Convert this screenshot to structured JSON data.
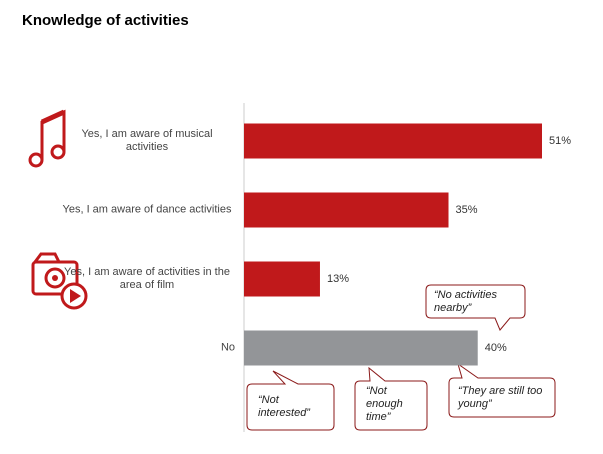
{
  "chart_data": {
    "type": "bar",
    "orientation": "horizontal",
    "title": "Knowledge of activities",
    "categories": [
      "Yes, I am aware of musical activities",
      "Yes, I am aware of dance activities",
      "Yes, I am aware of activities in the area of film",
      "No"
    ],
    "values": [
      51,
      35,
      13,
      40
    ],
    "value_labels": [
      "51%",
      "35%",
      "13%",
      "40%"
    ],
    "colors": [
      "#c0191b",
      "#c0191b",
      "#c0191b",
      "#939598"
    ],
    "xlim": [
      0,
      51
    ],
    "annotations": [
      "“No activities nearby”",
      "“Not interested”",
      "“Not enough time”",
      "“They are still too young”"
    ]
  }
}
